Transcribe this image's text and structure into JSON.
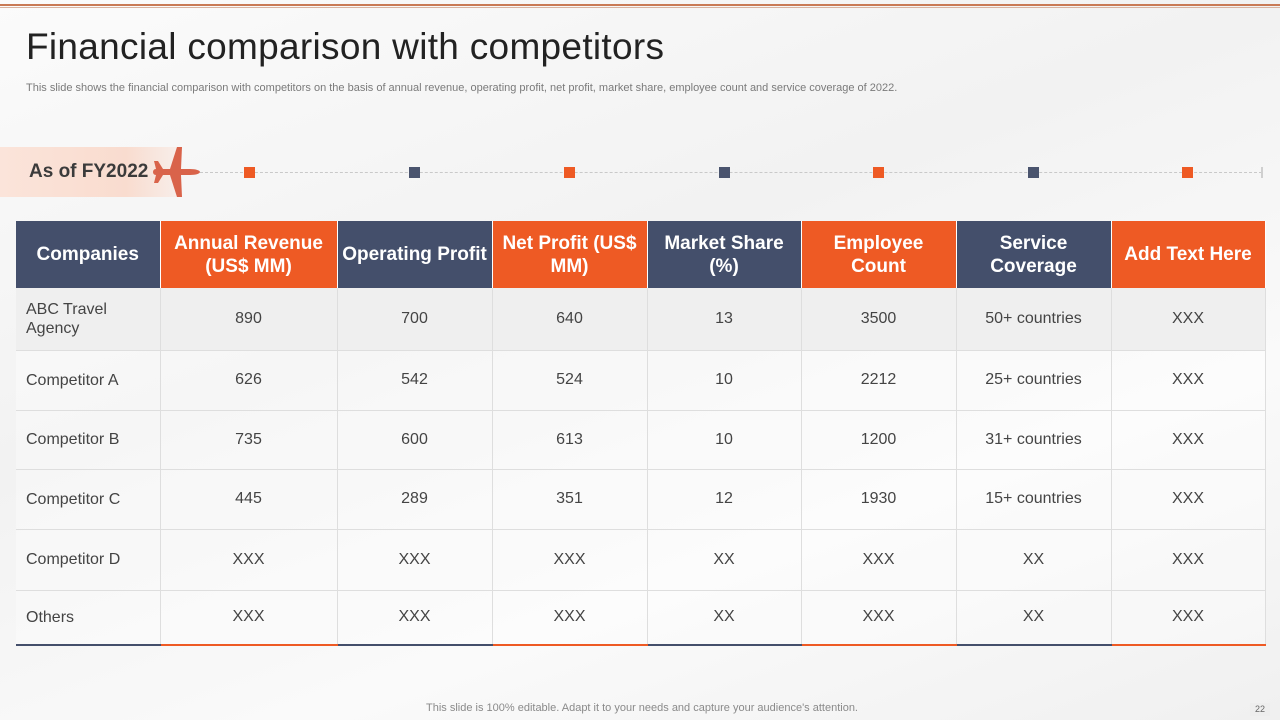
{
  "slide": {
    "title": "Financial comparison with competitors",
    "subtitle": "This slide shows the financial comparison with competitors on the basis of annual revenue, operating profit, net profit,  market share, employee count and service coverage of 2022.",
    "as_of_label": "As of FY2022",
    "footer": "This slide is 100% editable. Adapt it to your needs and capture your audience's attention.",
    "page_number": "22"
  },
  "colors": {
    "accent": "#ee5a24",
    "navy": "#444f6b"
  },
  "table": {
    "headers": [
      "Companies",
      "Annual Revenue (US$ MM)",
      "Operating Profit",
      "Net Profit (US$ MM)",
      "Market Share (%)",
      "Employee Count",
      "Service Coverage",
      "Add Text Here"
    ],
    "rows": [
      [
        "ABC Travel Agency",
        "890",
        "700",
        "640",
        "13",
        "3500",
        "50+ countries",
        "XXX"
      ],
      [
        "Competitor A",
        "626",
        "542",
        "524",
        "10",
        "2212",
        "25+ countries",
        "XXX"
      ],
      [
        "Competitor B",
        "735",
        "600",
        "613",
        "10",
        "1200",
        "31+ countries",
        "XXX"
      ],
      [
        "Competitor C",
        "445",
        "289",
        "351",
        "12",
        "1930",
        "15+ countries",
        "XXX"
      ],
      [
        "Competitor D",
        "XXX",
        "XXX",
        "XXX",
        "XX",
        "XXX",
        "XX",
        "XXX"
      ],
      [
        "Others",
        "XXX",
        "XXX",
        "XXX",
        "XX",
        "XXX",
        "XX",
        "XXX"
      ]
    ]
  }
}
